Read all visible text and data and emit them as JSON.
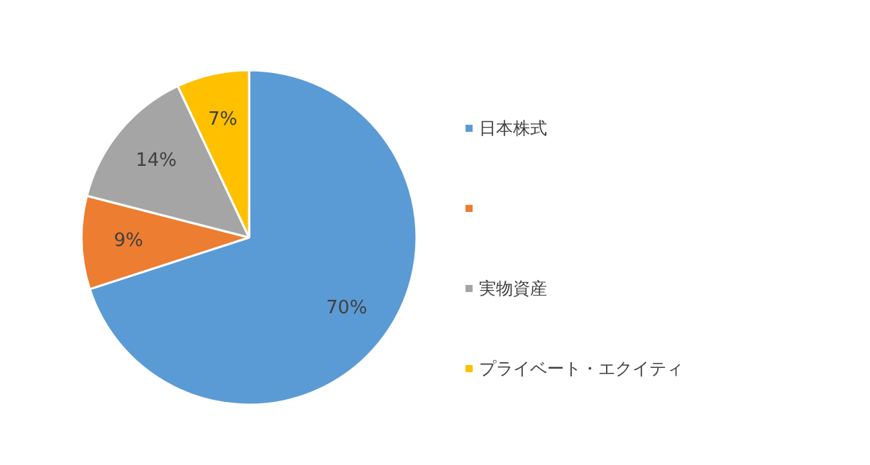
{
  "chart_data": {
    "type": "pie",
    "categories": [
      "日本株式",
      null,
      "実物資産",
      "プライベート・エクイティ"
    ],
    "values": [
      70,
      9,
      14,
      7
    ],
    "colors": [
      "#5b9bd5",
      "#ed7d31",
      "#a5a5a5",
      "#ffc000"
    ],
    "value_labels": [
      "70%",
      "9%",
      "14%",
      "7%"
    ],
    "legend": "right"
  }
}
